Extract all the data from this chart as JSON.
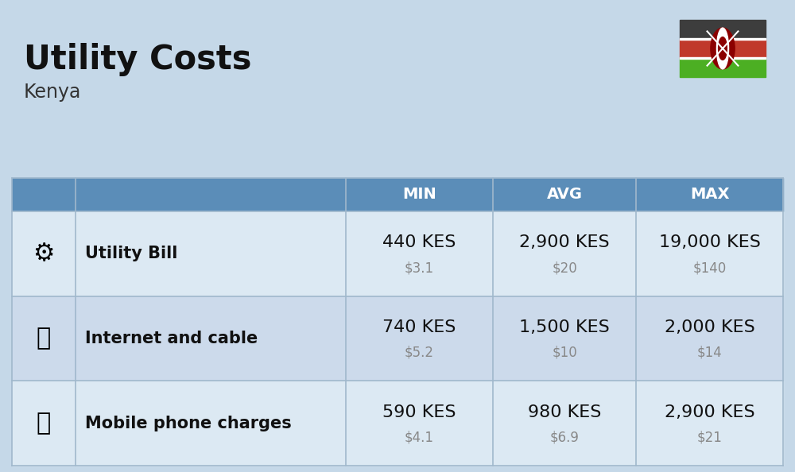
{
  "title": "Utility Costs",
  "subtitle": "Kenya",
  "background_color": "#c5d8e8",
  "header_bg_color": "#5b8db8",
  "header_text_color": "#ffffff",
  "row_bg_color_1": "#dce9f3",
  "row_bg_color_2": "#ccdaeb",
  "columns": [
    "MIN",
    "AVG",
    "MAX"
  ],
  "rows": [
    {
      "label": "Utility Bill",
      "min_kes": "440 KES",
      "min_usd": "$3.1",
      "avg_kes": "2,900 KES",
      "avg_usd": "$20",
      "max_kes": "19,000 KES",
      "max_usd": "$140"
    },
    {
      "label": "Internet and cable",
      "min_kes": "740 KES",
      "min_usd": "$5.2",
      "avg_kes": "1,500 KES",
      "avg_usd": "$10",
      "max_kes": "2,000 KES",
      "max_usd": "$14"
    },
    {
      "label": "Mobile phone charges",
      "min_kes": "590 KES",
      "min_usd": "$4.1",
      "avg_kes": "980 KES",
      "avg_usd": "$6.9",
      "max_kes": "2,900 KES",
      "max_usd": "$21"
    }
  ],
  "flag_colors": {
    "black": "#3d3d3d",
    "red": "#c0392b",
    "green": "#4caf23",
    "white": "#ffffff"
  },
  "title_fontsize": 30,
  "subtitle_fontsize": 17,
  "header_fontsize": 14,
  "cell_kes_fontsize": 16,
  "cell_usd_fontsize": 12,
  "label_fontsize": 15
}
